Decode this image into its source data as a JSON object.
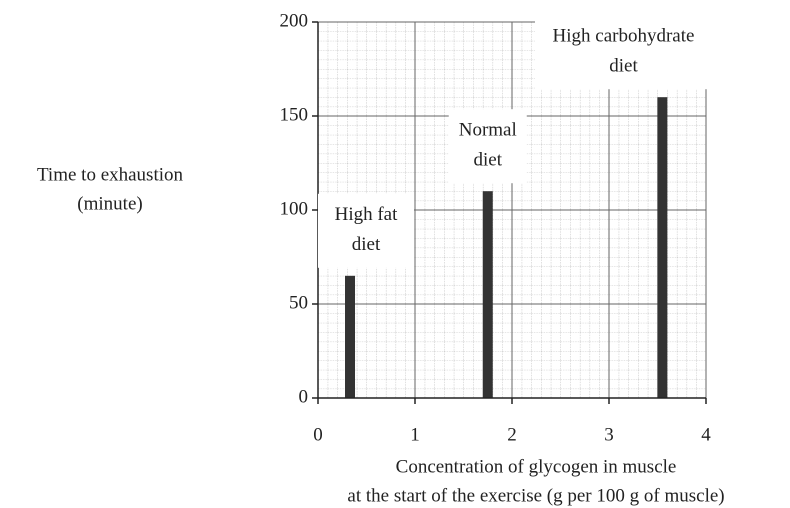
{
  "chart_data": {
    "type": "bar",
    "x": [
      0.33,
      1.75,
      3.55
    ],
    "values": [
      65,
      110,
      160
    ],
    "bar_labels": [
      [
        "High fat",
        "diet"
      ],
      [
        "Normal",
        "diet"
      ],
      [
        "High carbohydrate",
        "diet"
      ]
    ],
    "color": "#333333",
    "xlim": [
      0,
      4
    ],
    "xticks": [
      0,
      1,
      2,
      3,
      4
    ],
    "ylim": [
      0,
      200
    ],
    "yticks": [
      0,
      50,
      100,
      150,
      200
    ],
    "ylabel": [
      "Time to exhaustion",
      "(minute)"
    ],
    "xlabel": [
      "Concentration of glycogen in muscle",
      "at the start of the exercise (g per 100 g of muscle)"
    ],
    "grid": true
  }
}
